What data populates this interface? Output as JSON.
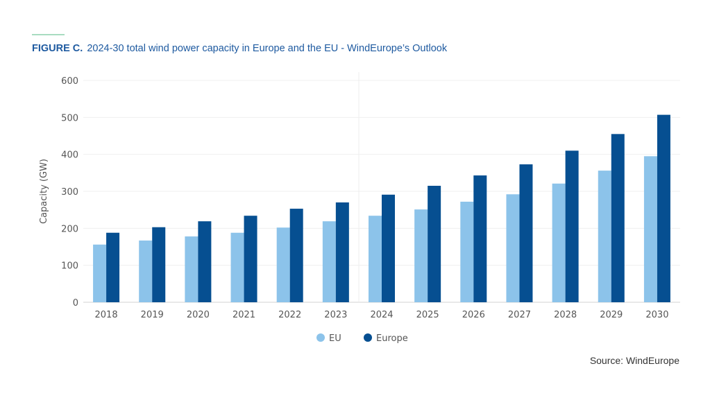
{
  "header": {
    "figure_label": "FIGURE C.",
    "title": "2024-30 total wind power capacity in Europe and the EU - WindEurope’s Outlook"
  },
  "source": "Source: WindEurope",
  "chart_data": {
    "type": "bar",
    "title": "2024-30 total wind power capacity in Europe and the EU - WindEurope’s Outlook",
    "xlabel": "",
    "ylabel": "Capacity (GW)",
    "ylim": [
      0,
      600
    ],
    "yticks": [
      0,
      100,
      200,
      300,
      400,
      500,
      600
    ],
    "grid": true,
    "legend": "bottom",
    "categories": [
      "2018",
      "2019",
      "2020",
      "2021",
      "2022",
      "2023",
      "2024",
      "2025",
      "2026",
      "2027",
      "2028",
      "2029",
      "2030"
    ],
    "series": [
      {
        "name": "EU",
        "color": "#8cc3ea",
        "values": [
          156,
          167,
          178,
          188,
          202,
          219,
          234,
          251,
          272,
          292,
          321,
          356,
          395
        ]
      },
      {
        "name": "Europe",
        "color": "#064f91",
        "values": [
          188,
          203,
          219,
          234,
          253,
          270,
          291,
          315,
          343,
          373,
          410,
          455,
          507
        ]
      }
    ]
  }
}
